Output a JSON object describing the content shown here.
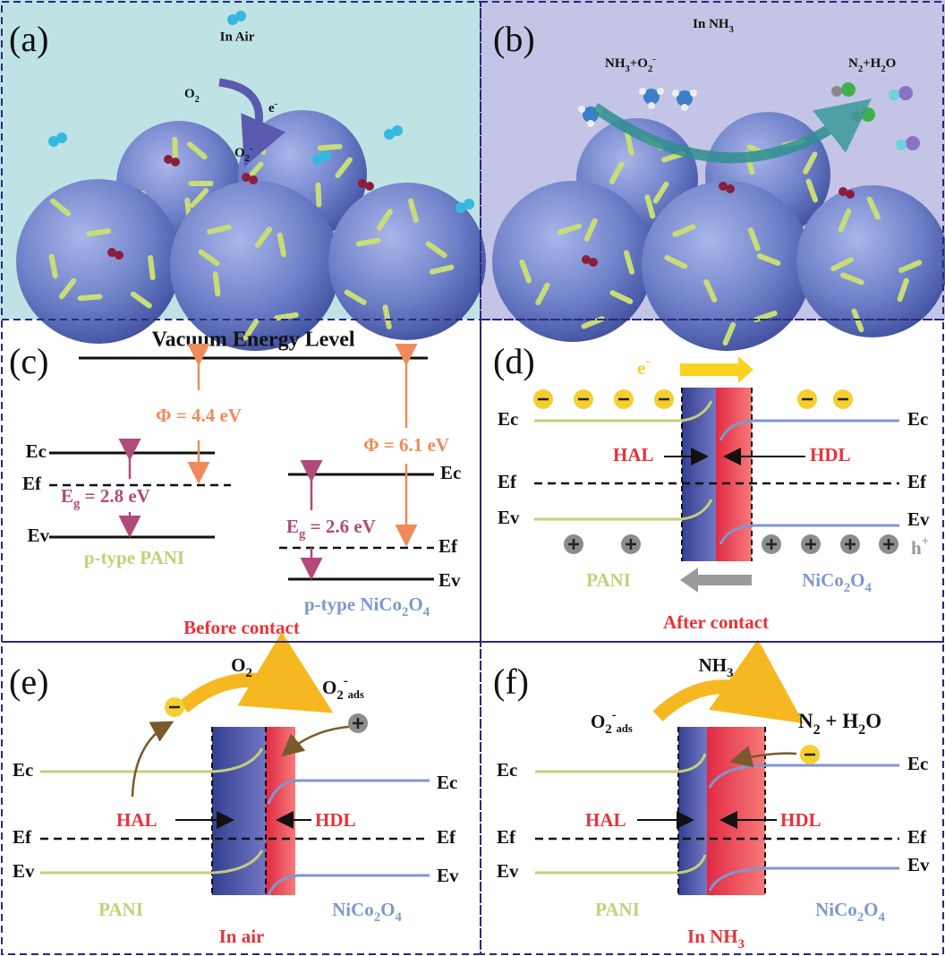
{
  "panel_a": {
    "label": "(a)",
    "title": "In Air",
    "oxygen": [
      "O",
      "2"
    ],
    "electron": [
      "e",
      "-"
    ],
    "superoxide": [
      "O",
      "2",
      "-"
    ]
  },
  "panel_b": {
    "label": "(b)",
    "title": [
      "In NH",
      "3"
    ],
    "reactants": [
      "NH",
      "3",
      "+O",
      "2",
      "-"
    ],
    "products": [
      "N",
      "2",
      "+H",
      "2",
      "O"
    ]
  },
  "panel_c": {
    "label": "(c)",
    "vacuum_level": "Vacuum Energy Level",
    "pani": {
      "ec": "Ec",
      "ef": "Ef",
      "ev": "Ev",
      "work_function": "Φ = 4.4 eV",
      "band_gap": [
        "E",
        "g",
        " = 2.8 eV"
      ],
      "name": "p-type PANI"
    },
    "nico2o4": {
      "ec": "Ec",
      "ef": "Ef",
      "ev": "Ev",
      "work_function": "Φ = 6.1 eV",
      "band_gap": [
        "E",
        "g",
        " = 2.6 eV"
      ],
      "name": [
        "p-type NiCo",
        "2",
        "O",
        "4"
      ]
    },
    "caption": "Before contact"
  },
  "panel_d": {
    "label": "(d)",
    "electron": [
      "e",
      "-"
    ],
    "pani": {
      "ec": "Ec",
      "ef": "Ef",
      "ev": "Ev",
      "name": "PANI"
    },
    "nico2o4": {
      "ec": "Ec",
      "ef": "Ef",
      "ev": "Ev",
      "name": [
        "NiCo",
        "2",
        "O",
        "4"
      ]
    },
    "hal": "HAL",
    "hdl": "HDL",
    "hole": [
      "h",
      "+"
    ],
    "caption": "After contact"
  },
  "panel_e": {
    "label": "(e)",
    "gas": [
      "O",
      "2"
    ],
    "adsorbed": [
      "O",
      "2",
      "-",
      "ads"
    ],
    "pani": {
      "ec": "Ec",
      "ef": "Ef",
      "ev": "Ev",
      "name": "PANI"
    },
    "nico2o4": {
      "ec": "Ec",
      "ef": "Ef",
      "ev": "Ev",
      "name": [
        "NiCo",
        "2",
        "O",
        "4"
      ]
    },
    "hal": "HAL",
    "hdl": "HDL",
    "caption": "In air"
  },
  "panel_f": {
    "label": "(f)",
    "gas": [
      "NH",
      "3"
    ],
    "adsorbed": [
      "O",
      "2",
      "-",
      "ads"
    ],
    "products": [
      "N",
      "2",
      " + H",
      "2",
      "O"
    ],
    "pani": {
      "ec": "Ec",
      "ef": "Ef",
      "ev": "Ev",
      "name": "PANI"
    },
    "nico2o4": {
      "ec": "Ec",
      "ef": "Ef",
      "ev": "Ev",
      "name": [
        "NiCo",
        "2",
        "O",
        "4"
      ]
    },
    "hal": "HAL",
    "hdl": "HDL",
    "caption": [
      "In NH",
      "3"
    ]
  }
}
